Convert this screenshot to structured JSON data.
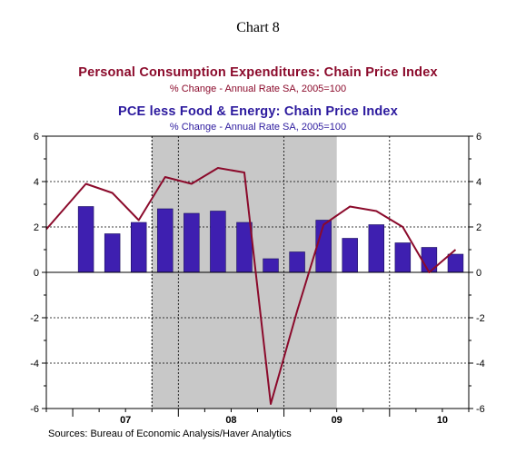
{
  "chart_data": {
    "type": "bar",
    "chart_number": "Chart 8",
    "titles": [
      {
        "title": "Personal Consumption Expenditures: Chain Price Index",
        "subtitle": "% Change - Annual Rate    SA, 2005=100",
        "color": "#8b0a2b"
      },
      {
        "title": "PCE less Food & Energy: Chain Price Index",
        "subtitle": "% Change - Annual Rate    SA, 2005=100",
        "color": "#2c1a9e"
      }
    ],
    "x": [
      "2006Q4",
      "2007Q1",
      "2007Q2",
      "2007Q3",
      "2007Q4",
      "2008Q1",
      "2008Q2",
      "2008Q3",
      "2008Q4",
      "2009Q1",
      "2009Q2",
      "2009Q3",
      "2009Q4",
      "2010Q1",
      "2010Q2",
      "2010Q3"
    ],
    "year_labels": [
      {
        "label": "07",
        "center": "2007Q2.5"
      },
      {
        "label": "08",
        "center": "2008Q2.5"
      },
      {
        "label": "09",
        "center": "2009Q2.5"
      },
      {
        "label": "10",
        "center": "2010Q2.5"
      }
    ],
    "series": [
      {
        "name": "PCE less Food & Energy: Chain Price Index",
        "kind": "bar",
        "color": "#3e1fb0",
        "x": [
          "2007Q1",
          "2007Q2",
          "2007Q3",
          "2007Q4",
          "2008Q1",
          "2008Q2",
          "2008Q3",
          "2008Q4",
          "2009Q1",
          "2009Q2",
          "2009Q3",
          "2009Q4",
          "2010Q1",
          "2010Q2",
          "2010Q3"
        ],
        "values": [
          2.9,
          1.7,
          2.2,
          2.8,
          2.6,
          2.7,
          2.2,
          0.6,
          0.9,
          2.3,
          1.5,
          2.1,
          1.3,
          1.1,
          0.8
        ]
      },
      {
        "name": "Personal Consumption Expenditures: Chain Price Index",
        "kind": "line",
        "color": "#8b0a2b",
        "x": [
          "2006Q4",
          "2007Q1",
          "2007Q2",
          "2007Q3",
          "2007Q4",
          "2008Q1",
          "2008Q2",
          "2008Q3",
          "2008Q4",
          "2009Q1",
          "2009Q2",
          "2009Q3",
          "2009Q4",
          "2010Q1",
          "2010Q2",
          "2010Q3"
        ],
        "values": [
          1.9,
          3.9,
          3.5,
          2.3,
          4.2,
          3.9,
          4.6,
          4.4,
          -5.8,
          -1.7,
          2.1,
          2.9,
          2.7,
          2.0,
          0.0,
          1.0
        ]
      }
    ],
    "ylim": [
      -6,
      6
    ],
    "yticks_left": [
      "6",
      "4",
      "2",
      "0",
      "-2",
      "-4",
      "-6"
    ],
    "yticks_right": [
      "6",
      "4",
      "2",
      "0",
      "-2",
      "-4",
      "-6"
    ],
    "recession_shading": {
      "start": "2007Q4",
      "end": "2009Q2",
      "color": "#c8c8c8"
    },
    "grid": "dashed horizontal and vertical (year boundaries)",
    "source": "Sources:  Bureau of Economic Analysis/Haver Analytics"
  }
}
